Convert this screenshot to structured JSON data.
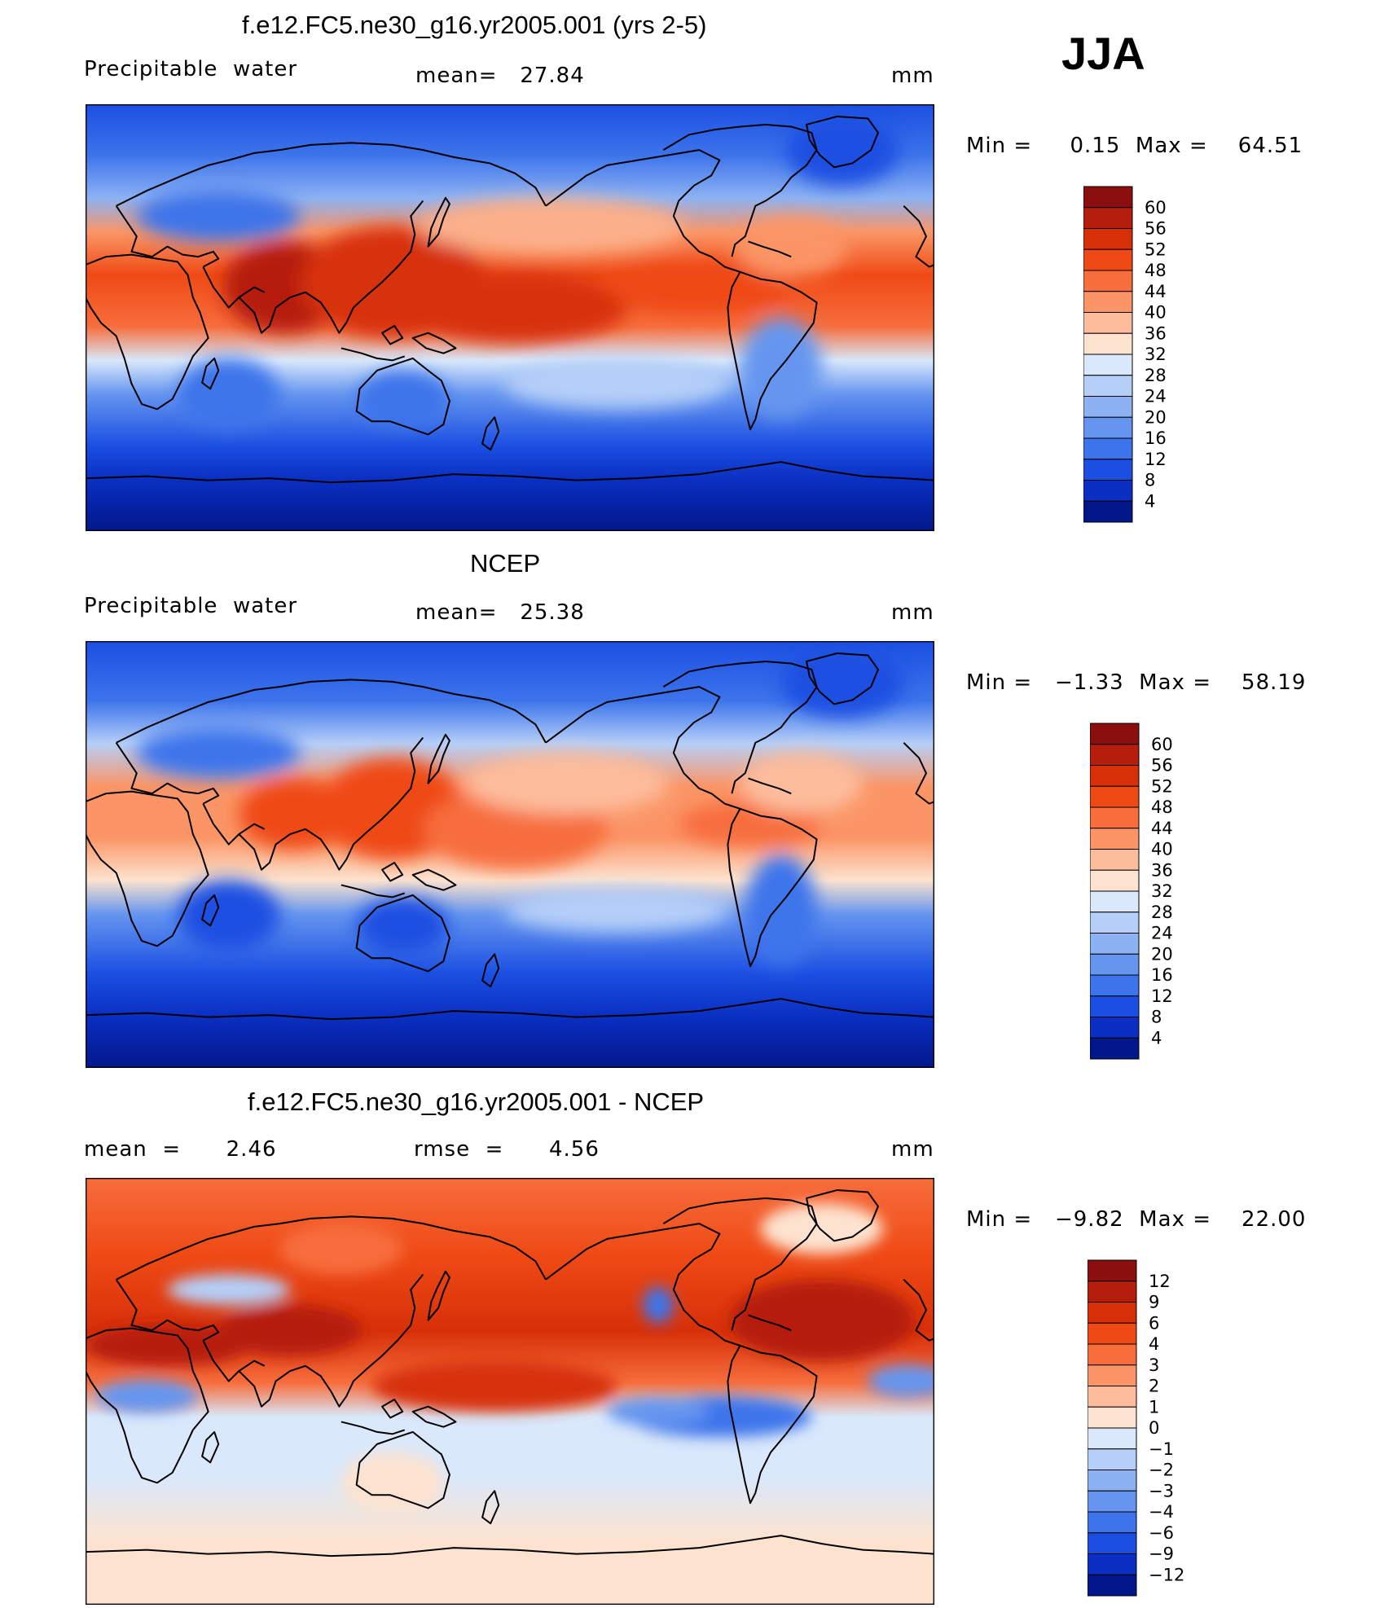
{
  "season": "JJA",
  "panels": [
    {
      "title": "f.e12.FC5.ne30_g16.yr2005.001 (yrs 2-5)",
      "left_label": "Precipitable  water",
      "mean_label": "mean=   27.84",
      "unit": "mm",
      "minmax": "Min =     0.15  Max =    64.51",
      "colorbar": {
        "levels": [
          "60",
          "56",
          "52",
          "48",
          "44",
          "40",
          "36",
          "32",
          "28",
          "24",
          "20",
          "16",
          "12",
          "8",
          "4"
        ],
        "colors": [
          "#8b0f0f",
          "#b51e0c",
          "#d73009",
          "#ef4a15",
          "#f76d3c",
          "#fb9566",
          "#fdbd9c",
          "#fde3cf",
          "#d9e8fb",
          "#b5cff8",
          "#8db2f3",
          "#6595ef",
          "#3d74eb",
          "#1b4fe2",
          "#0a2fc2",
          "#02178a"
        ]
      }
    },
    {
      "title": "NCEP",
      "left_label": "Precipitable  water",
      "mean_label": "mean=   25.38",
      "unit": "mm",
      "minmax": "Min =   −1.33  Max =    58.19",
      "colorbar": {
        "levels": [
          "60",
          "56",
          "52",
          "48",
          "44",
          "40",
          "36",
          "32",
          "28",
          "24",
          "20",
          "16",
          "12",
          "8",
          "4"
        ],
        "colors": [
          "#8b0f0f",
          "#b51e0c",
          "#d73009",
          "#ef4a15",
          "#f76d3c",
          "#fb9566",
          "#fdbd9c",
          "#fde3cf",
          "#d9e8fb",
          "#b5cff8",
          "#8db2f3",
          "#6595ef",
          "#3d74eb",
          "#1b4fe2",
          "#0a2fc2",
          "#02178a"
        ]
      }
    },
    {
      "title": "f.e12.FC5.ne30_g16.yr2005.001 - NCEP",
      "left_label": "mean  =      2.46",
      "mean_label": "rmse  =      4.56",
      "unit": "mm",
      "minmax": "Min =   −9.82  Max =    22.00",
      "colorbar": {
        "levels": [
          "12",
          "9",
          "6",
          "4",
          "3",
          "2",
          "1",
          "0",
          "−1",
          "−2",
          "−3",
          "−4",
          "−6",
          "−9",
          "−12"
        ],
        "colors": [
          "#8b0f0f",
          "#b51e0c",
          "#d73009",
          "#ef4a15",
          "#f76d3c",
          "#fb9566",
          "#fdbd9c",
          "#fde3cf",
          "#d9e8fb",
          "#b5cff8",
          "#8db2f3",
          "#6595ef",
          "#3d74eb",
          "#1b4fe2",
          "#0a2fc2",
          "#02178a"
        ]
      }
    }
  ]
}
